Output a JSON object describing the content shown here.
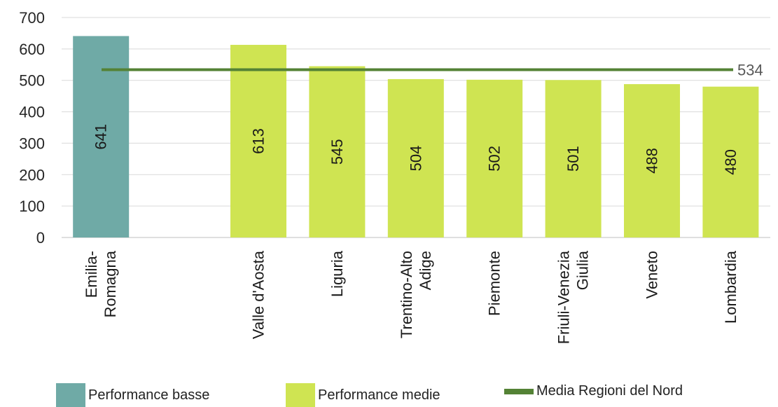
{
  "chart_data": {
    "type": "bar",
    "categories": [
      "Emilia-Romagna",
      "",
      "Valle d'Aosta",
      "Liguria",
      "Trentino-Alto Adige",
      "Piemonte",
      "Friuli-Venezia Giulia",
      "Veneto",
      "Lombardia"
    ],
    "category_lines": [
      [
        "Emilia-",
        "Romagna"
      ],
      [],
      [
        "Valle d'Aosta"
      ],
      [
        "Liguria"
      ],
      [
        "Trentino-Alto",
        "Adige"
      ],
      [
        "Piemonte"
      ],
      [
        "Friuli-Venezia",
        "Giulia"
      ],
      [
        "Veneto"
      ],
      [
        "Lombardia"
      ]
    ],
    "series": [
      {
        "name": "Performance basse",
        "color": "#6faaa6",
        "values": [
          641,
          null,
          null,
          null,
          null,
          null,
          null,
          null,
          null
        ]
      },
      {
        "name": "Performance medie",
        "color": "#cfe452",
        "values": [
          null,
          null,
          613,
          545,
          504,
          502,
          501,
          488,
          480
        ]
      }
    ],
    "reference_line": {
      "name": "Media Regioni del Nord",
      "value": 534,
      "label": "534",
      "color": "#548235"
    },
    "ylim": [
      0,
      700
    ],
    "yticks": [
      0,
      100,
      200,
      300,
      400,
      500,
      600,
      700
    ],
    "grid": true,
    "legend_position": "bottom",
    "title": "",
    "xlabel": "",
    "ylabel": ""
  },
  "legend": {
    "items": [
      {
        "label": "Performance basse",
        "kind": "box",
        "color": "#6faaa6"
      },
      {
        "label": "Performance medie",
        "kind": "box",
        "color": "#cfe452"
      },
      {
        "label": "Media Regioni del Nord",
        "kind": "line",
        "color": "#548235"
      }
    ]
  }
}
